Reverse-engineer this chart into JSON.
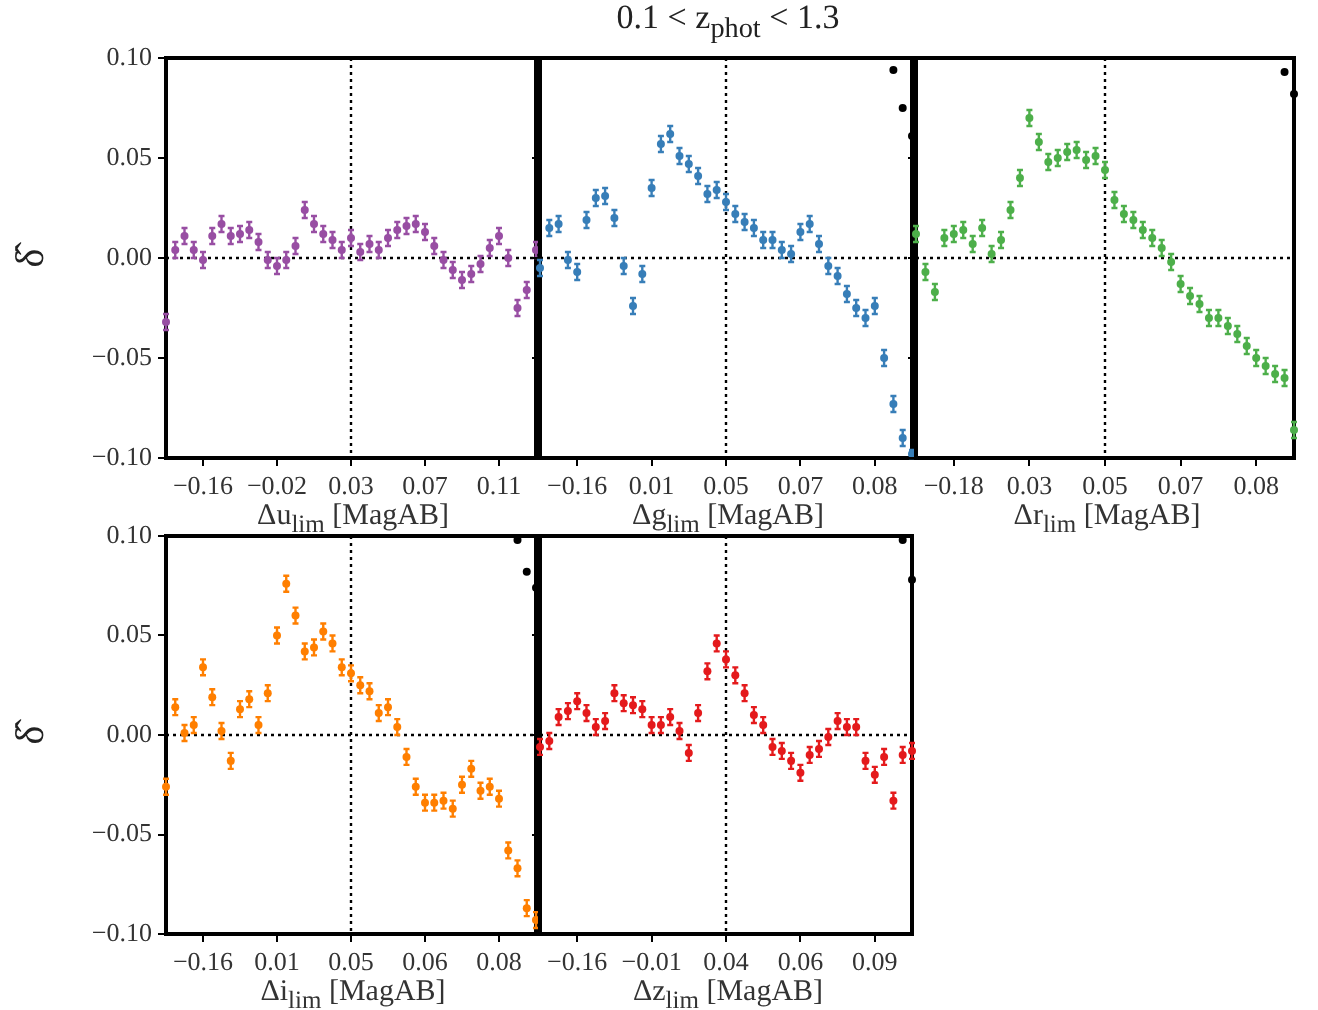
{
  "chart_data": [
    {
      "type": "scatter",
      "xlabel": "Δu$_{lim}$ [MagAB]",
      "ylabel": "δ̂",
      "marker": "circle",
      "ylim": [
        -0.1,
        0.1
      ],
      "categories": [
        null,
        null,
        null,
        null,
        "−0.16",
        null,
        null,
        null,
        null,
        null,
        null,
        null,
        "−0.02",
        null,
        null,
        null,
        null,
        null,
        null,
        null,
        "0.03",
        null,
        null,
        null,
        null,
        null,
        null,
        null,
        "0.07",
        null,
        null,
        null,
        null,
        null,
        null,
        null,
        "0.11",
        null,
        null,
        null,
        null
      ],
      "yticks": [
        {
          "value": -0.1,
          "label": "−0.10"
        },
        {
          "value": -0.05,
          "label": "−0.05"
        },
        {
          "value": 0,
          "label": "0.00"
        },
        {
          "value": 0.05,
          "label": "0.05"
        },
        {
          "value": 0.1,
          "label": "0.10"
        }
      ],
      "ref_lines": [
        {
          "axis": "y",
          "value": 0,
          "color": "#000000",
          "line_style": "dotted"
        },
        {
          "axis": "x",
          "value": "0.03",
          "color": "#000000",
          "line_style": "dotted"
        }
      ],
      "series": [
        {
          "color": "#984ea3",
          "values": [
            -0.032,
            0.004,
            0.011,
            0.004,
            -0.001,
            0.011,
            0.017,
            0.011,
            0.012,
            0.014,
            0.008,
            -0.001,
            -0.004,
            -0.001,
            0.006,
            0.024,
            0.017,
            0.012,
            0.009,
            0.004,
            0.01,
            0.003,
            0.007,
            0.004,
            0.01,
            0.014,
            0.016,
            0.017,
            0.013,
            0.006,
            -0.001,
            -0.006,
            -0.011,
            -0.008,
            -0.003,
            0.005,
            0.011,
            0.0,
            -0.025,
            -0.016,
            0.004
          ],
          "errors": [
            0.004,
            0.004,
            0.004,
            0.004,
            0.004,
            0.004,
            0.004,
            0.004,
            0.004,
            0.004,
            0.004,
            0.004,
            0.004,
            0.004,
            0.004,
            0.004,
            0.004,
            0.004,
            0.004,
            0.004,
            0.004,
            0.004,
            0.004,
            0.004,
            0.004,
            0.004,
            0.004,
            0.004,
            0.004,
            0.004,
            0.004,
            0.004,
            0.004,
            0.004,
            0.004,
            0.004,
            0.004,
            0.004,
            0.004,
            0.004,
            0.004
          ]
        }
      ]
    },
    {
      "type": "scatter",
      "title": "0.1 < z$_{phot}$ < 1.3",
      "xlabel": "Δg$_{lim}$ [MagAB]",
      "marker": "circle",
      "tick_labels": "x",
      "ylim": [
        -0.1,
        0.1
      ],
      "categories": [
        null,
        null,
        null,
        null,
        "−0.16",
        null,
        null,
        null,
        null,
        null,
        null,
        null,
        "0.01",
        null,
        null,
        null,
        null,
        null,
        null,
        null,
        "0.05",
        null,
        null,
        null,
        null,
        null,
        null,
        null,
        "0.07",
        null,
        null,
        null,
        null,
        null,
        null,
        null,
        "0.08",
        null,
        null,
        null,
        null
      ],
      "yticks": [
        -0.1,
        -0.05,
        0,
        0.05,
        0.1
      ],
      "ref_lines": [
        {
          "axis": "y",
          "value": 0,
          "color": "#000000",
          "line_style": "dotted"
        },
        {
          "axis": "x",
          "value": "0.05",
          "color": "#000000",
          "line_style": "dotted"
        }
      ],
      "series": [
        {
          "color": "#377eb8",
          "values": [
            -0.005,
            0.015,
            0.017,
            -0.001,
            -0.007,
            0.019,
            0.03,
            0.031,
            0.02,
            -0.004,
            -0.024,
            -0.008,
            0.035,
            0.057,
            0.062,
            0.051,
            0.047,
            0.041,
            0.032,
            0.034,
            0.028,
            0.022,
            0.018,
            0.015,
            0.009,
            0.009,
            0.004,
            0.002,
            0.013,
            0.017,
            0.007,
            -0.004,
            -0.009,
            -0.018,
            -0.025,
            -0.03,
            -0.024,
            -0.05,
            -0.073,
            -0.09,
            -0.098
          ],
          "errors": [
            0.004,
            0.004,
            0.004,
            0.004,
            0.004,
            0.004,
            0.004,
            0.004,
            0.004,
            0.004,
            0.004,
            0.004,
            0.004,
            0.004,
            0.004,
            0.004,
            0.004,
            0.004,
            0.004,
            0.004,
            0.004,
            0.004,
            0.004,
            0.004,
            0.004,
            0.004,
            0.004,
            0.004,
            0.004,
            0.004,
            0.004,
            0.004,
            0.004,
            0.004,
            0.004,
            0.004,
            0.004,
            0.004,
            0.004,
            0.004,
            0.002
          ]
        },
        {
          "color": "#000000",
          "values": [
            null,
            null,
            null,
            null,
            null,
            null,
            null,
            null,
            null,
            null,
            null,
            null,
            null,
            null,
            null,
            null,
            null,
            null,
            null,
            null,
            null,
            null,
            null,
            null,
            null,
            null,
            null,
            null,
            null,
            null,
            null,
            null,
            null,
            null,
            null,
            null,
            null,
            null,
            0.094,
            0.075,
            0.061
          ]
        }
      ]
    },
    {
      "type": "scatter",
      "xlabel": "Δr$_{lim}$ [MagAB]",
      "marker": "circle",
      "tick_labels": "x",
      "ylim": [
        -0.1,
        0.1
      ],
      "categories": [
        null,
        null,
        null,
        null,
        "−0.18",
        null,
        null,
        null,
        null,
        null,
        null,
        null,
        "0.03",
        null,
        null,
        null,
        null,
        null,
        null,
        null,
        "0.05",
        null,
        null,
        null,
        null,
        null,
        null,
        null,
        "0.07",
        null,
        null,
        null,
        null,
        null,
        null,
        null,
        "0.08",
        null,
        null,
        null,
        null
      ],
      "yticks": [
        -0.1,
        -0.05,
        0,
        0.05,
        0.1
      ],
      "ref_lines": [
        {
          "axis": "y",
          "value": 0,
          "color": "#000000",
          "line_style": "dotted"
        },
        {
          "axis": "x",
          "value": "0.05",
          "color": "#000000",
          "line_style": "dotted"
        }
      ],
      "series": [
        {
          "color": "#4daf4a",
          "values": [
            0.012,
            -0.007,
            -0.017,
            0.01,
            0.012,
            0.014,
            0.007,
            0.015,
            0.002,
            0.009,
            0.024,
            0.04,
            0.07,
            0.058,
            0.048,
            0.05,
            0.053,
            0.054,
            0.049,
            0.051,
            0.044,
            0.029,
            0.022,
            0.019,
            0.014,
            0.01,
            0.005,
            -0.002,
            -0.013,
            -0.019,
            -0.023,
            -0.03,
            -0.03,
            -0.034,
            -0.038,
            -0.044,
            -0.05,
            -0.054,
            -0.058,
            -0.06,
            -0.086
          ],
          "errors": [
            0.004,
            0.004,
            0.004,
            0.004,
            0.004,
            0.004,
            0.004,
            0.004,
            0.004,
            0.004,
            0.004,
            0.004,
            0.004,
            0.004,
            0.004,
            0.004,
            0.004,
            0.004,
            0.004,
            0.004,
            0.004,
            0.004,
            0.004,
            0.004,
            0.004,
            0.004,
            0.004,
            0.004,
            0.004,
            0.004,
            0.004,
            0.004,
            0.004,
            0.004,
            0.004,
            0.004,
            0.004,
            0.004,
            0.004,
            0.004,
            0.004
          ]
        },
        {
          "color": "#000000",
          "values": [
            null,
            null,
            null,
            null,
            null,
            null,
            null,
            null,
            null,
            null,
            null,
            null,
            null,
            null,
            null,
            null,
            null,
            null,
            null,
            null,
            null,
            null,
            null,
            null,
            null,
            null,
            null,
            null,
            null,
            null,
            null,
            null,
            null,
            null,
            null,
            null,
            null,
            null,
            null,
            0.093,
            0.082
          ]
        }
      ]
    },
    {
      "type": "scatter",
      "xlabel": "Δi$_{lim}$ [MagAB]",
      "ylabel": "δ̂",
      "marker": "circle",
      "ylim": [
        -0.1,
        0.1
      ],
      "categories": [
        null,
        null,
        null,
        null,
        "−0.16",
        null,
        null,
        null,
        null,
        null,
        null,
        null,
        "0.01",
        null,
        null,
        null,
        null,
        null,
        null,
        null,
        "0.05",
        null,
        null,
        null,
        null,
        null,
        null,
        null,
        "0.06",
        null,
        null,
        null,
        null,
        null,
        null,
        null,
        "0.08",
        null,
        null,
        null,
        null
      ],
      "yticks": [
        {
          "value": -0.1,
          "label": "−0.10"
        },
        {
          "value": -0.05,
          "label": "−0.05"
        },
        {
          "value": 0,
          "label": "0.00"
        },
        {
          "value": 0.05,
          "label": "0.05"
        },
        {
          "value": 0.1,
          "label": "0.10"
        }
      ],
      "ref_lines": [
        {
          "axis": "y",
          "value": 0,
          "color": "#000000",
          "line_style": "dotted"
        },
        {
          "axis": "x",
          "value": "0.05",
          "color": "#000000",
          "line_style": "dotted"
        }
      ],
      "series": [
        {
          "color": "#ff7f00",
          "values": [
            -0.026,
            0.014,
            0.001,
            0.005,
            0.034,
            0.019,
            0.002,
            -0.013,
            0.013,
            0.018,
            0.005,
            0.021,
            0.05,
            0.076,
            0.06,
            0.042,
            0.044,
            0.052,
            0.046,
            0.034,
            0.031,
            0.025,
            0.022,
            0.011,
            0.014,
            0.004,
            -0.011,
            -0.026,
            -0.034,
            -0.034,
            -0.033,
            -0.037,
            -0.025,
            -0.017,
            -0.028,
            -0.026,
            -0.032,
            -0.058,
            -0.067,
            -0.087,
            -0.093
          ],
          "errors": [
            0.004,
            0.004,
            0.004,
            0.004,
            0.004,
            0.004,
            0.004,
            0.004,
            0.004,
            0.004,
            0.004,
            0.004,
            0.004,
            0.004,
            0.004,
            0.004,
            0.004,
            0.004,
            0.004,
            0.004,
            0.004,
            0.004,
            0.004,
            0.004,
            0.004,
            0.004,
            0.004,
            0.004,
            0.004,
            0.004,
            0.004,
            0.004,
            0.004,
            0.004,
            0.004,
            0.004,
            0.004,
            0.004,
            0.004,
            0.004,
            0.004
          ]
        },
        {
          "color": "#000000",
          "values": [
            null,
            null,
            null,
            null,
            null,
            null,
            null,
            null,
            null,
            null,
            null,
            null,
            null,
            null,
            null,
            null,
            null,
            null,
            null,
            null,
            null,
            null,
            null,
            null,
            null,
            null,
            null,
            null,
            null,
            null,
            null,
            null,
            null,
            null,
            null,
            null,
            null,
            null,
            0.098,
            0.082,
            0.074
          ]
        }
      ]
    },
    {
      "type": "scatter",
      "xlabel": "Δz$_{lim}$ [MagAB]",
      "marker": "circle",
      "tick_labels": "x",
      "ylim": [
        -0.1,
        0.1
      ],
      "categories": [
        null,
        null,
        null,
        null,
        "−0.16",
        null,
        null,
        null,
        null,
        null,
        null,
        null,
        "−0.01",
        null,
        null,
        null,
        null,
        null,
        null,
        null,
        "0.04",
        null,
        null,
        null,
        null,
        null,
        null,
        null,
        "0.06",
        null,
        null,
        null,
        null,
        null,
        null,
        null,
        "0.09",
        null,
        null,
        null,
        null
      ],
      "yticks": [
        -0.1,
        -0.05,
        0,
        0.05,
        0.1
      ],
      "ref_lines": [
        {
          "axis": "y",
          "value": 0,
          "color": "#000000",
          "line_style": "dotted"
        },
        {
          "axis": "x",
          "value": "0.04",
          "color": "#000000",
          "line_style": "dotted"
        }
      ],
      "series": [
        {
          "color": "#e41a1c",
          "values": [
            -0.006,
            -0.003,
            0.009,
            0.012,
            0.017,
            0.011,
            0.004,
            0.007,
            0.021,
            0.016,
            0.015,
            0.013,
            0.005,
            0.005,
            0.009,
            0.002,
            -0.009,
            0.011,
            0.032,
            0.046,
            0.038,
            0.03,
            0.021,
            0.01,
            0.005,
            -0.006,
            -0.008,
            -0.013,
            -0.019,
            -0.01,
            -0.007,
            -0.001,
            0.007,
            0.004,
            0.004,
            -0.013,
            -0.02,
            -0.011,
            -0.033,
            -0.01,
            -0.008
          ],
          "errors": [
            0.004,
            0.004,
            0.004,
            0.004,
            0.004,
            0.004,
            0.004,
            0.004,
            0.004,
            0.004,
            0.004,
            0.004,
            0.004,
            0.004,
            0.004,
            0.004,
            0.004,
            0.004,
            0.004,
            0.004,
            0.004,
            0.004,
            0.004,
            0.004,
            0.004,
            0.004,
            0.004,
            0.004,
            0.004,
            0.004,
            0.004,
            0.004,
            0.004,
            0.004,
            0.004,
            0.004,
            0.004,
            0.004,
            0.004,
            0.004,
            0.004
          ]
        },
        {
          "color": "#000000",
          "values": [
            null,
            null,
            null,
            null,
            null,
            null,
            null,
            null,
            null,
            null,
            null,
            null,
            null,
            null,
            null,
            null,
            null,
            null,
            null,
            null,
            null,
            null,
            null,
            null,
            null,
            null,
            null,
            null,
            null,
            null,
            null,
            null,
            null,
            null,
            null,
            null,
            null,
            null,
            null,
            0.098,
            0.078
          ]
        }
      ]
    }
  ]
}
